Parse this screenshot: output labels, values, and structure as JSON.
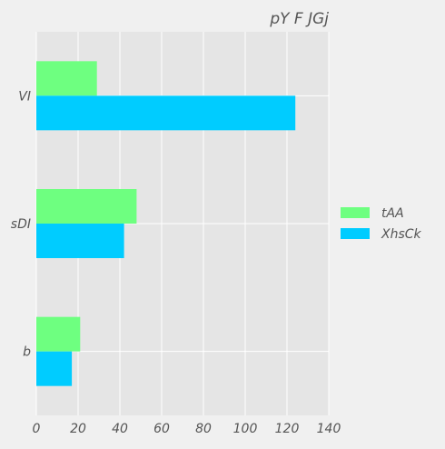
{
  "chart_data": {
    "type": "bar",
    "orientation": "horizontal",
    "title": "pY F  JGj",
    "categories": [
      "VI",
      "sDI",
      "b"
    ],
    "series": [
      {
        "name": "tAA",
        "color": "#6eff80",
        "values": [
          29,
          48,
          21
        ]
      },
      {
        "name": "XhsCk",
        "color": "#00ccff",
        "values": [
          124,
          42,
          17
        ]
      }
    ],
    "xlim": [
      0,
      140
    ],
    "xticks": [
      0,
      20,
      40,
      60,
      80,
      100,
      120,
      140
    ],
    "grid": true,
    "legend_position": "right"
  },
  "colors": {
    "background": "#f0f0f0",
    "plot_background": "#e5e5e5",
    "grid": "#ffffff",
    "text": "#555555"
  }
}
